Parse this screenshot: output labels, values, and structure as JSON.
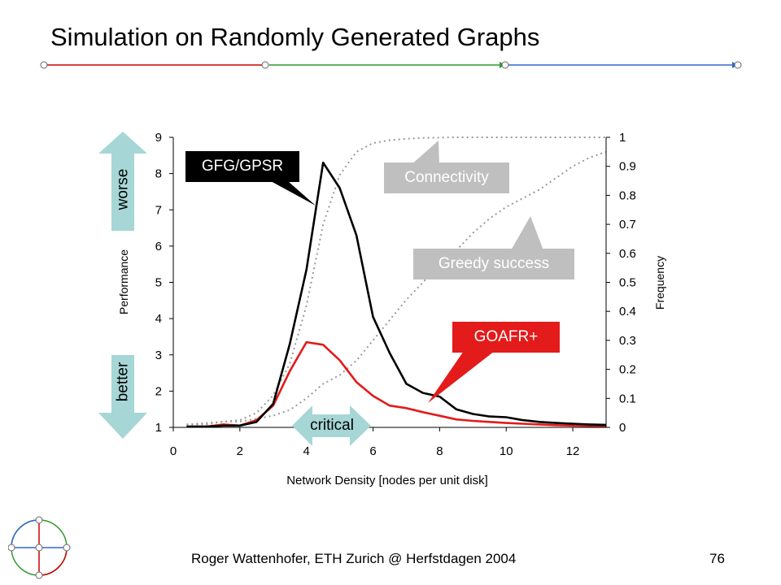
{
  "slide": {
    "title": "Simulation on Randomly Generated Graphs",
    "footer": "Roger Wattenhofer, ETH Zurich @ Herfstdagen 2004",
    "page_number": "76"
  },
  "header_bar": {
    "colors": [
      "#cc0000",
      "#339933",
      "#3366cc"
    ]
  },
  "labels": {
    "gfg": "GFG/GPSR",
    "connectivity": "Connectivity",
    "greedy": "Greedy success",
    "goafr": "GOAFR+",
    "worse": "worse",
    "better": "better",
    "critical": "critical"
  },
  "colors": {
    "gfg": "#000000",
    "goafr": "#e31b1b",
    "frequency": "#999999",
    "callout_gray": "#bfbfbf",
    "arrow_teal": "#a6d6d6"
  },
  "chart_data": {
    "type": "line",
    "xlabel": "Network Density [nodes per unit disk]",
    "ylabel": "Performance",
    "y2label": "Frequency",
    "xlim": [
      0,
      13
    ],
    "ylim": [
      1,
      9
    ],
    "y2lim": [
      0,
      1
    ],
    "x_ticks": [
      "0",
      "2",
      "4",
      "6",
      "8",
      "10",
      "12"
    ],
    "y_ticks": [
      "1",
      "2",
      "3",
      "4",
      "5",
      "6",
      "7",
      "8",
      "9"
    ],
    "y2_ticks": [
      "0",
      "0.1",
      "0.2",
      "0.3",
      "0.4",
      "0.5",
      "0.6",
      "0.7",
      "0.8",
      "0.9",
      "1"
    ],
    "grid": false,
    "series": [
      {
        "name": "GFG/GPSR",
        "axis": "left",
        "style": "solid",
        "x": [
          0.4,
          1,
          1.5,
          2,
          2.5,
          3,
          3.5,
          4,
          4.5,
          5,
          5.5,
          6,
          6.5,
          7,
          7.5,
          8,
          8.5,
          9,
          9.5,
          10,
          10.5,
          11,
          11.5,
          12,
          12.5,
          13
        ],
        "values": [
          1.02,
          1.02,
          1.05,
          1.05,
          1.15,
          1.65,
          3.3,
          5.35,
          8.3,
          7.6,
          6.3,
          4.05,
          3.05,
          2.2,
          1.95,
          1.85,
          1.5,
          1.37,
          1.3,
          1.28,
          1.2,
          1.15,
          1.12,
          1.1,
          1.08,
          1.07
        ]
      },
      {
        "name": "GOAFR+",
        "axis": "left",
        "style": "solid",
        "x": [
          0.4,
          1,
          1.5,
          2,
          2.5,
          3,
          3.5,
          4,
          4.5,
          5,
          5.5,
          6,
          6.5,
          7,
          7.5,
          8,
          8.5,
          9,
          9.5,
          10,
          10.5,
          11,
          11.5,
          12,
          12.5,
          13
        ],
        "values": [
          1.02,
          1.02,
          1.08,
          1.05,
          1.2,
          1.6,
          2.55,
          3.35,
          3.28,
          2.85,
          2.25,
          1.87,
          1.6,
          1.53,
          1.42,
          1.32,
          1.22,
          1.18,
          1.15,
          1.12,
          1.1,
          1.08,
          1.06,
          1.05,
          1.04,
          1.03
        ]
      },
      {
        "name": "Connectivity",
        "axis": "right",
        "style": "dotted",
        "x": [
          0.4,
          1,
          1.5,
          2,
          2.5,
          3,
          3.5,
          4,
          4.5,
          5,
          5.5,
          6,
          6.5,
          7,
          7.5,
          8,
          8.5,
          9,
          9.5,
          10,
          10.5,
          11,
          11.5,
          12,
          12.5,
          13
        ],
        "values": [
          0.01,
          0.015,
          0.02,
          0.025,
          0.05,
          0.11,
          0.22,
          0.42,
          0.7,
          0.87,
          0.95,
          0.98,
          0.99,
          0.995,
          0.998,
          0.999,
          1,
          1,
          1,
          1,
          1,
          1,
          1,
          1,
          1,
          1
        ]
      },
      {
        "name": "Greedy success",
        "axis": "right",
        "style": "dotted",
        "x": [
          0.4,
          1,
          1.5,
          2,
          2.5,
          3,
          3.5,
          4,
          4.5,
          5,
          5.5,
          6,
          6.5,
          7,
          7.5,
          8,
          8.5,
          9,
          9.5,
          10,
          10.5,
          11,
          11.5,
          12,
          12.5,
          13
        ],
        "values": [
          0.01,
          0.01,
          0.02,
          0.02,
          0.03,
          0.04,
          0.06,
          0.1,
          0.15,
          0.18,
          0.23,
          0.3,
          0.37,
          0.44,
          0.5,
          0.56,
          0.61,
          0.67,
          0.72,
          0.76,
          0.79,
          0.82,
          0.86,
          0.9,
          0.93,
          0.95
        ]
      }
    ]
  }
}
